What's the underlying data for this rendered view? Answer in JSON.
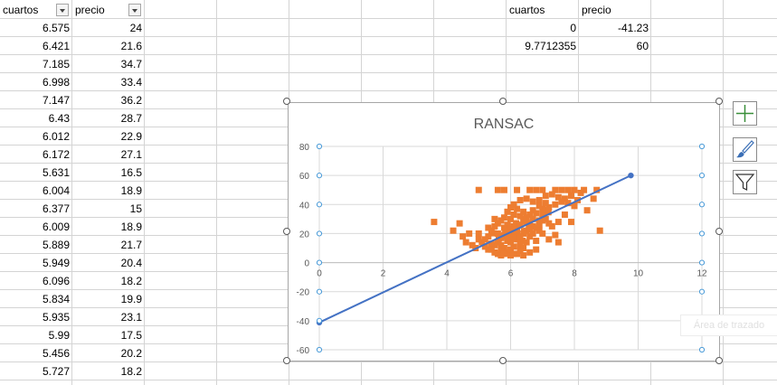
{
  "sheet": {
    "headers": {
      "col_a": "cuartos",
      "col_b": "precio"
    },
    "rows": [
      {
        "cuartos": "6.575",
        "precio": "24"
      },
      {
        "cuartos": "6.421",
        "precio": "21.6"
      },
      {
        "cuartos": "7.185",
        "precio": "34.7"
      },
      {
        "cuartos": "6.998",
        "precio": "33.4"
      },
      {
        "cuartos": "7.147",
        "precio": "36.2"
      },
      {
        "cuartos": "6.43",
        "precio": "28.7"
      },
      {
        "cuartos": "6.012",
        "precio": "22.9"
      },
      {
        "cuartos": "6.172",
        "precio": "27.1"
      },
      {
        "cuartos": "5.631",
        "precio": "16.5"
      },
      {
        "cuartos": "6.004",
        "precio": "18.9"
      },
      {
        "cuartos": "6.377",
        "precio": "15"
      },
      {
        "cuartos": "6.009",
        "precio": "18.9"
      },
      {
        "cuartos": "5.889",
        "precio": "21.7"
      },
      {
        "cuartos": "5.949",
        "precio": "20.4"
      },
      {
        "cuartos": "6.096",
        "precio": "18.2"
      },
      {
        "cuartos": "5.834",
        "precio": "19.9"
      },
      {
        "cuartos": "5.935",
        "precio": "23.1"
      },
      {
        "cuartos": "5.99",
        "precio": "17.5"
      },
      {
        "cuartos": "5.456",
        "precio": "20.2"
      },
      {
        "cuartos": "5.727",
        "precio": "18.2"
      }
    ],
    "side_table": {
      "headers": {
        "col_a": "cuartos",
        "col_b": "precio"
      },
      "rows": [
        {
          "cuartos": "0",
          "precio": "-41.23"
        },
        {
          "cuartos": "9.7712355",
          "precio": "60"
        }
      ]
    }
  },
  "chart_data": {
    "type": "scatter",
    "title": "RANSAC",
    "xlim": [
      0,
      12
    ],
    "ylim": [
      -60,
      80
    ],
    "x_ticks": [
      "0",
      "2",
      "4",
      "6",
      "8",
      "10",
      "12"
    ],
    "y_ticks": [
      "80",
      "60",
      "40",
      "20",
      "0",
      "-20",
      "-40",
      "-60"
    ],
    "grid": true,
    "legend": "none",
    "series": [
      {
        "kind": "markers",
        "color": "#ED7D31",
        "points": [
          [
            6.575,
            24
          ],
          [
            6.421,
            21.6
          ],
          [
            7.185,
            34.7
          ],
          [
            6.998,
            33.4
          ],
          [
            7.147,
            36.2
          ],
          [
            6.43,
            28.7
          ],
          [
            6.012,
            22.9
          ],
          [
            6.172,
            27.1
          ],
          [
            5.631,
            16.5
          ],
          [
            6.004,
            18.9
          ],
          [
            6.377,
            15
          ],
          [
            6.009,
            18.9
          ],
          [
            5.889,
            21.7
          ],
          [
            5.949,
            20.4
          ],
          [
            6.096,
            18.2
          ],
          [
            5.834,
            19.9
          ],
          [
            5.935,
            23.1
          ],
          [
            5.99,
            17.5
          ],
          [
            5.456,
            20.2
          ],
          [
            5.727,
            18.2
          ],
          [
            5.0,
            50
          ],
          [
            5.6,
            50
          ],
          [
            5.8,
            50
          ],
          [
            6.2,
            50
          ],
          [
            6.6,
            50
          ],
          [
            6.8,
            50
          ],
          [
            7.0,
            50
          ],
          [
            7.4,
            50
          ],
          [
            7.6,
            50
          ],
          [
            7.8,
            50
          ],
          [
            8.0,
            50
          ],
          [
            8.3,
            50
          ],
          [
            8.7,
            50
          ],
          [
            7.1,
            46
          ],
          [
            7.3,
            47
          ],
          [
            7.5,
            45
          ],
          [
            7.7,
            44
          ],
          [
            7.9,
            46
          ],
          [
            8.1,
            43
          ],
          [
            8.2,
            48
          ],
          [
            7.6,
            42
          ],
          [
            7.8,
            41
          ],
          [
            8.0,
            39
          ],
          [
            7.4,
            40
          ],
          [
            7.2,
            38
          ],
          [
            7.0,
            37
          ],
          [
            6.9,
            39
          ],
          [
            6.8,
            34
          ],
          [
            6.7,
            36
          ],
          [
            6.6,
            33
          ],
          [
            6.5,
            31
          ],
          [
            6.4,
            30
          ],
          [
            6.3,
            26
          ],
          [
            6.2,
            24
          ],
          [
            6.1,
            25
          ],
          [
            6.0,
            23
          ],
          [
            5.9,
            21
          ],
          [
            5.8,
            19
          ],
          [
            5.7,
            17
          ],
          [
            5.6,
            14
          ],
          [
            5.5,
            12
          ],
          [
            5.4,
            13
          ],
          [
            5.3,
            9
          ],
          [
            5.2,
            11
          ],
          [
            5.1,
            14
          ],
          [
            5.0,
            16
          ],
          [
            4.9,
            10
          ],
          [
            4.8,
            12
          ],
          [
            4.7,
            20
          ],
          [
            4.6,
            14
          ],
          [
            4.5,
            18
          ],
          [
            4.4,
            27
          ],
          [
            4.2,
            22
          ],
          [
            3.6,
            28
          ],
          [
            5.5,
            30
          ],
          [
            5.3,
            24
          ],
          [
            5.6,
            27
          ],
          [
            5.8,
            31
          ],
          [
            5.9,
            35
          ],
          [
            6.0,
            30
          ],
          [
            6.1,
            33
          ],
          [
            6.2,
            37
          ],
          [
            6.3,
            32
          ],
          [
            6.4,
            35
          ],
          [
            6.5,
            28
          ],
          [
            6.6,
            27
          ],
          [
            6.7,
            30
          ],
          [
            6.8,
            24
          ],
          [
            6.9,
            26
          ],
          [
            7.0,
            29
          ],
          [
            7.1,
            30
          ],
          [
            7.2,
            27
          ],
          [
            7.3,
            25
          ],
          [
            7.5,
            28
          ],
          [
            7.7,
            33
          ],
          [
            6.2,
            16
          ],
          [
            6.3,
            12
          ],
          [
            6.4,
            10
          ],
          [
            6.5,
            14
          ],
          [
            6.6,
            18
          ],
          [
            6.7,
            20
          ],
          [
            6.8,
            15
          ],
          [
            6.9,
            22
          ],
          [
            7.0,
            20
          ],
          [
            7.2,
            16
          ],
          [
            5.8,
            10
          ],
          [
            5.7,
            8
          ],
          [
            5.9,
            7
          ],
          [
            6.0,
            9
          ],
          [
            6.1,
            11
          ],
          [
            6.2,
            6
          ],
          [
            6.3,
            8
          ],
          [
            5.5,
            7
          ],
          [
            5.6,
            6
          ],
          [
            5.7,
            5
          ],
          [
            5.8,
            6
          ],
          [
            6.0,
            5
          ],
          [
            6.1,
            6
          ],
          [
            6.4,
            5
          ],
          [
            6.6,
            7
          ],
          [
            6.8,
            9
          ],
          [
            7.4,
            19
          ],
          [
            7.5,
            14
          ],
          [
            8.8,
            22
          ],
          [
            7.9,
            28
          ],
          [
            8.4,
            36
          ],
          [
            8.6,
            44
          ],
          [
            5.4,
            22
          ],
          [
            5.3,
            18
          ],
          [
            5.2,
            16
          ],
          [
            5.5,
            25
          ],
          [
            5.7,
            29
          ],
          [
            6.1,
            40
          ],
          [
            6.3,
            43
          ],
          [
            6.5,
            44
          ],
          [
            6.7,
            42
          ],
          [
            6.9,
            43
          ],
          [
            7.1,
            41
          ],
          [
            6.0,
            38
          ],
          [
            5.9,
            26
          ],
          [
            6.2,
            20
          ],
          [
            6.5,
            22
          ],
          [
            6.7,
            25
          ],
          [
            6.9,
            29
          ],
          [
            6.0,
            14
          ],
          [
            5.6,
            20
          ],
          [
            5.8,
            24
          ],
          [
            6.4,
            20
          ],
          [
            6.6,
            23
          ],
          [
            6.3,
            18
          ],
          [
            5.7,
            12
          ],
          [
            5.9,
            15
          ],
          [
            6.1,
            17
          ],
          [
            5.4,
            9
          ],
          [
            5.0,
            20
          ]
        ]
      },
      {
        "kind": "line",
        "color": "#4472C4",
        "points": [
          [
            0,
            -41.23
          ],
          [
            9.7712355,
            60
          ]
        ]
      }
    ]
  },
  "chart_tools": {
    "elements_label": "+",
    "ghost_button_label": "Área de trazado"
  }
}
